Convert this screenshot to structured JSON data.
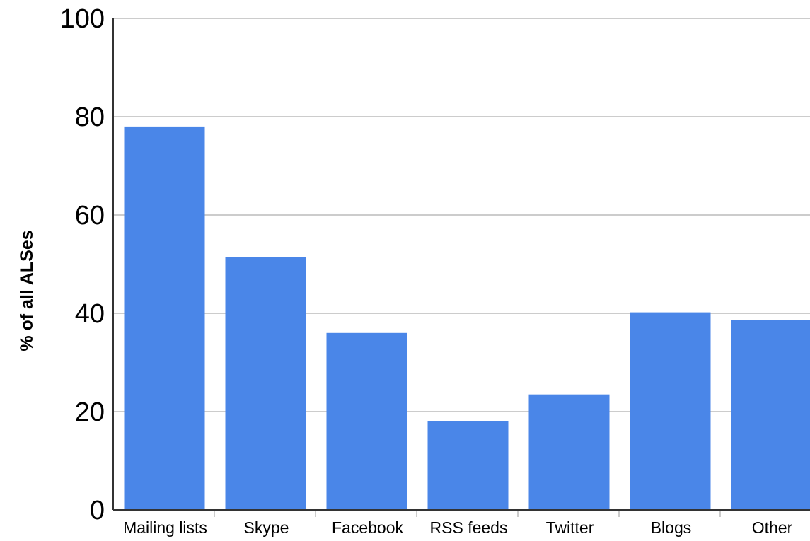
{
  "chart_data": {
    "type": "bar",
    "title": "",
    "xlabel": "",
    "ylabel": "% of all ALSes",
    "categories": [
      "Mailing lists",
      "Skype",
      "Facebook",
      "RSS feeds",
      "Twitter",
      "Blogs",
      "Other"
    ],
    "values": [
      78,
      51.5,
      36,
      18,
      23.5,
      40.2,
      38.7
    ],
    "ylim": [
      0,
      100
    ],
    "yticks": [
      "0",
      "20",
      "40",
      "60",
      "80",
      "100"
    ],
    "grid": true,
    "legend": "none",
    "colors": {
      "bar": "#4a86e8",
      "grid": "#cccccc",
      "axis": "#333333"
    }
  }
}
